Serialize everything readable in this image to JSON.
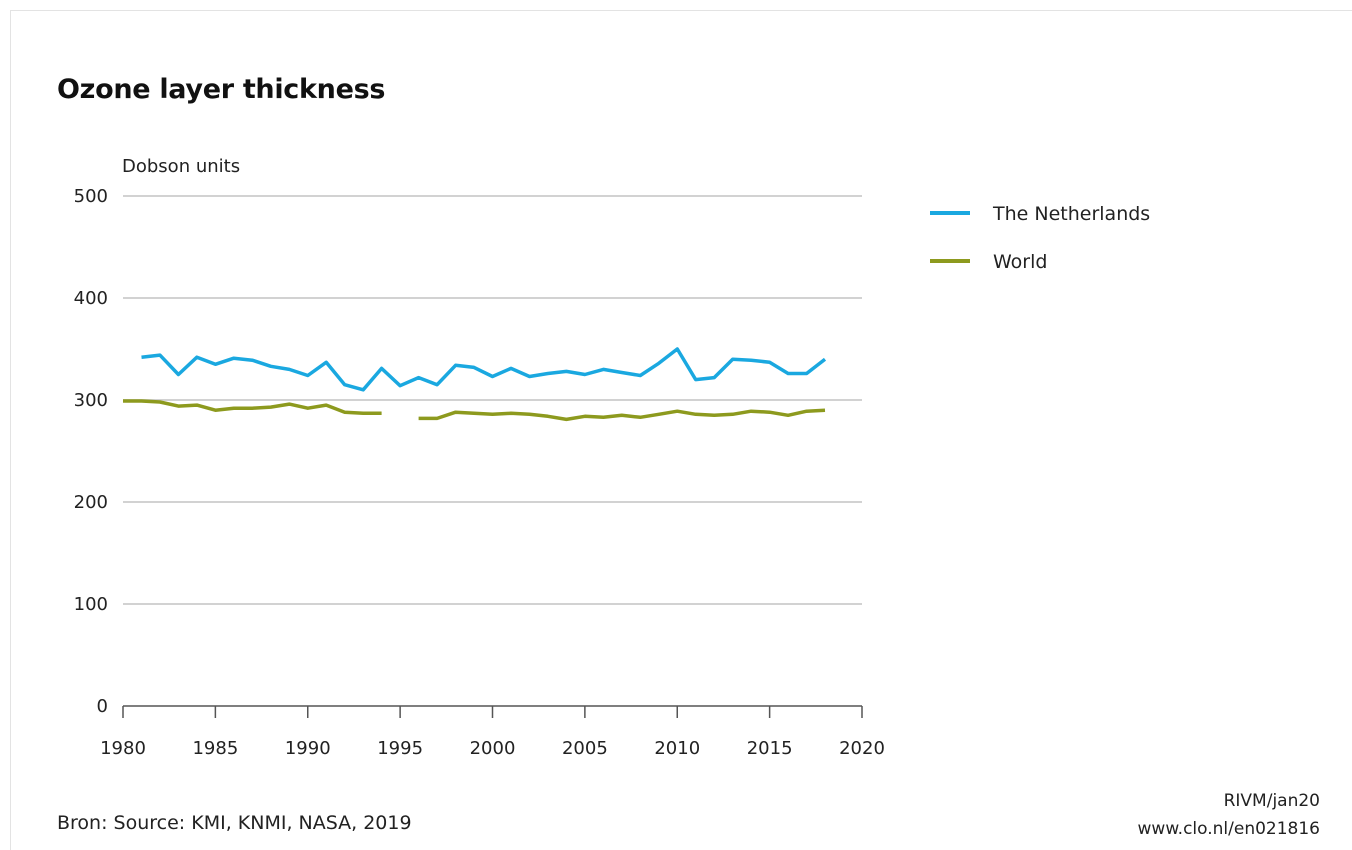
{
  "title": "Ozone layer thickness",
  "source": "Bron: Source: KMI, KNMI, NASA, 2019",
  "credit_line1": "RIVM/jan20",
  "credit_line2": "www.clo.nl/en021816",
  "chart_data": {
    "type": "line",
    "title": "Ozone layer thickness",
    "ylabel": "Dobson units",
    "xlabel": "",
    "xlim": [
      1980,
      2020
    ],
    "ylim": [
      0,
      500
    ],
    "x_ticks": [
      1980,
      1985,
      1990,
      1995,
      2000,
      2005,
      2010,
      2015,
      2020
    ],
    "y_ticks": [
      0,
      100,
      200,
      300,
      400,
      500
    ],
    "grid": true,
    "legend_position": "top-right",
    "series": [
      {
        "name": "The Netherlands",
        "color": "#1aa8e0",
        "x": [
          1981,
          1982,
          1983,
          1984,
          1985,
          1986,
          1987,
          1988,
          1989,
          1990,
          1991,
          1992,
          1993,
          1994,
          1995,
          1996,
          1997,
          1998,
          1999,
          2000,
          2001,
          2002,
          2003,
          2004,
          2005,
          2006,
          2007,
          2008,
          2009,
          2010,
          2011,
          2012,
          2013,
          2014,
          2015,
          2016,
          2017,
          2018
        ],
        "y": [
          342,
          344,
          325,
          342,
          335,
          341,
          339,
          333,
          330,
          324,
          337,
          315,
          310,
          331,
          314,
          322,
          315,
          334,
          332,
          323,
          331,
          323,
          326,
          328,
          325,
          330,
          327,
          324,
          336,
          350,
          320,
          322,
          340,
          339,
          337,
          326,
          326,
          340
        ]
      },
      {
        "name": "World",
        "color": "#8d9a1e",
        "x": [
          1980,
          1981,
          1982,
          1983,
          1984,
          1985,
          1986,
          1987,
          1988,
          1989,
          1990,
          1991,
          1992,
          1993,
          1994,
          null,
          1996,
          1997,
          1998,
          1999,
          2000,
          2001,
          2002,
          2003,
          2004,
          2005,
          2006,
          2007,
          2008,
          2009,
          2010,
          2011,
          2012,
          2013,
          2014,
          2015,
          2016,
          2017,
          2018
        ],
        "y": [
          299,
          299,
          298,
          294,
          295,
          290,
          292,
          292,
          293,
          296,
          292,
          295,
          288,
          287,
          287,
          null,
          282,
          282,
          288,
          287,
          286,
          287,
          286,
          284,
          281,
          284,
          283,
          285,
          283,
          286,
          289,
          286,
          285,
          286,
          289,
          288,
          285,
          289,
          290
        ]
      }
    ]
  }
}
